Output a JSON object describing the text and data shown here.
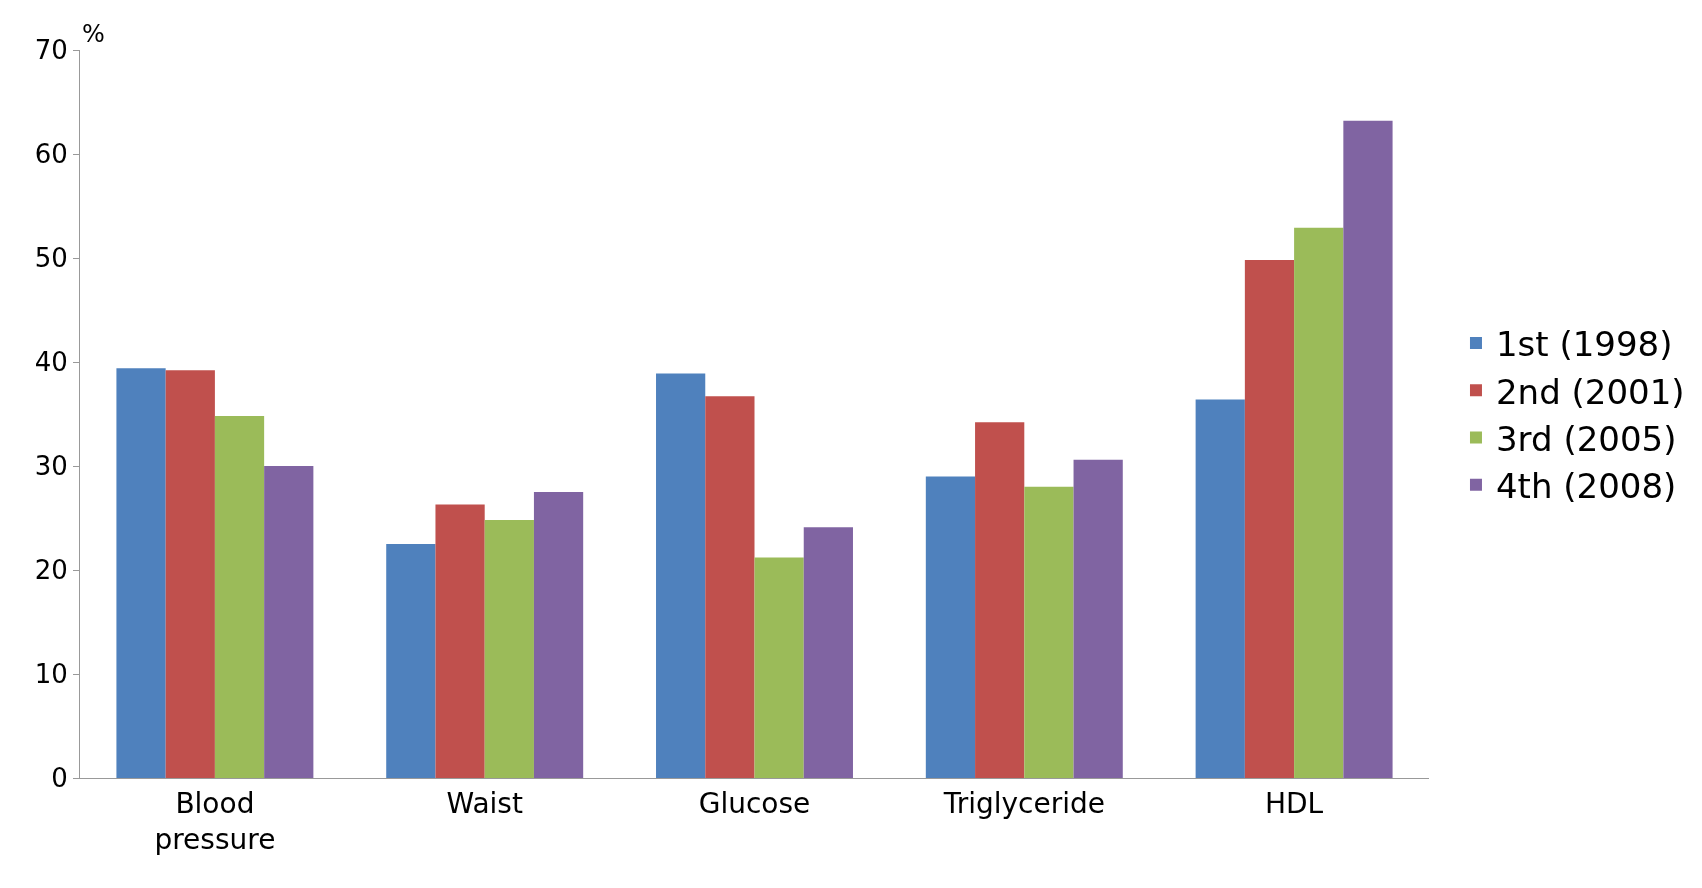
{
  "chart_data": {
    "type": "bar",
    "ylabel": "%",
    "categories": [
      "Blood pressure",
      "Waist",
      "Glucose",
      "Triglyceride",
      "HDL"
    ],
    "series": [
      {
        "name": "1st (1998)",
        "color": "#4f81bd",
        "values": [
          39.4,
          22.5,
          38.9,
          29.0,
          36.4
        ]
      },
      {
        "name": "2nd (2001)",
        "color": "#c0504d",
        "values": [
          39.2,
          26.3,
          36.7,
          34.2,
          49.8
        ]
      },
      {
        "name": "3rd (2005)",
        "color": "#9bbb59",
        "values": [
          34.8,
          24.8,
          21.2,
          28.0,
          52.9
        ]
      },
      {
        "name": "4th (2008)",
        "color": "#8064a2",
        "values": [
          30.0,
          27.5,
          24.1,
          30.6,
          63.2
        ]
      }
    ],
    "ylim": [
      0,
      70
    ],
    "yticks": [
      0,
      10,
      20,
      30,
      40,
      50,
      60,
      70
    ],
    "grid": false,
    "legend": "right"
  }
}
